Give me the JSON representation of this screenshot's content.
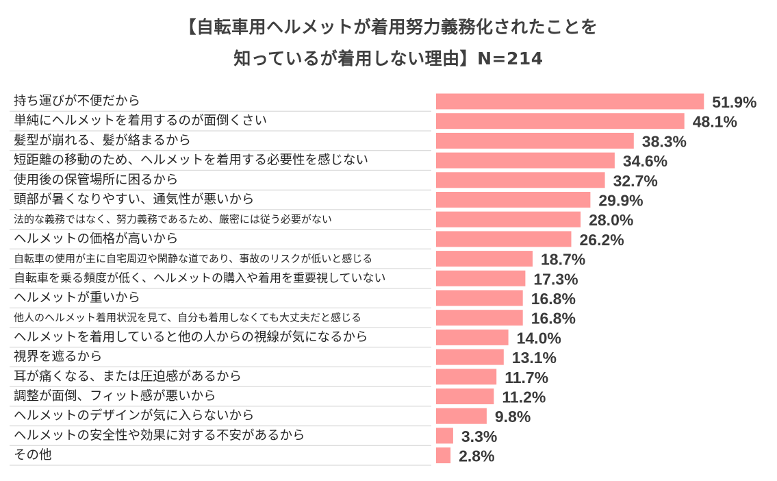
{
  "chart_data": {
    "type": "bar",
    "orientation": "horizontal",
    "title_lines": [
      "【自転車用ヘルメットが着用努力義務化されたことを",
      "知っているが着用しない理由】N=214"
    ],
    "categories": [
      "持ち運びが不便だから",
      "単純にヘルメットを着用するのが面倒くさい",
      "髪型が崩れる、髪が絡まるから",
      "短距離の移動のため、ヘルメットを着用する必要性を感じない",
      "使用後の保管場所に困るから",
      "頭部が暑くなりやすい、通気性が悪いから",
      "法的な義務ではなく、努力義務であるため、厳密には従う必要がない",
      "ヘルメットの価格が高いから",
      "自転車の使用が主に自宅周辺や閑静な道であり、事故のリスクが低いと感じる",
      "自転車を乗る頻度が低く、ヘルメットの購入や着用を重要視していない",
      "ヘルメットが重いから",
      "他人のヘルメット着用状況を見て、自分も着用しなくても大丈夫だと感じる",
      "ヘルメットを着用していると他の人からの視線が気になるから",
      "視界を遮るから",
      "耳が痛くなる、または圧迫感があるから",
      "調整が面倒、フィット感が悪いから",
      "ヘルメットのデザインが気に入らないから",
      "ヘルメットの安全性や効果に対する不安があるから",
      "その他"
    ],
    "values": [
      51.9,
      48.1,
      38.3,
      34.6,
      32.7,
      29.9,
      28.0,
      26.2,
      18.7,
      17.3,
      16.8,
      16.8,
      14.0,
      13.1,
      11.7,
      11.2,
      9.8,
      3.3,
      2.8
    ],
    "value_labels": [
      "51.9%",
      "48.1%",
      "38.3%",
      "34.6%",
      "32.7%",
      "29.9%",
      "28.0%",
      "26.2%",
      "18.7%",
      "17.3%",
      "16.8%",
      "16.8%",
      "14.0%",
      "13.1%",
      "11.7%",
      "11.2%",
      "9.8%",
      "3.3%",
      "2.8%"
    ],
    "unit": "%",
    "xlim": [
      0,
      55
    ],
    "bar_color": "#ff9999",
    "label_sizes": [
      "l",
      "l",
      "l",
      "l",
      "l",
      "l",
      "s",
      "l",
      "s",
      "m",
      "l",
      "s",
      "l",
      "l",
      "l",
      "l",
      "l",
      "l",
      "l"
    ],
    "grid": false,
    "legend": "none"
  }
}
